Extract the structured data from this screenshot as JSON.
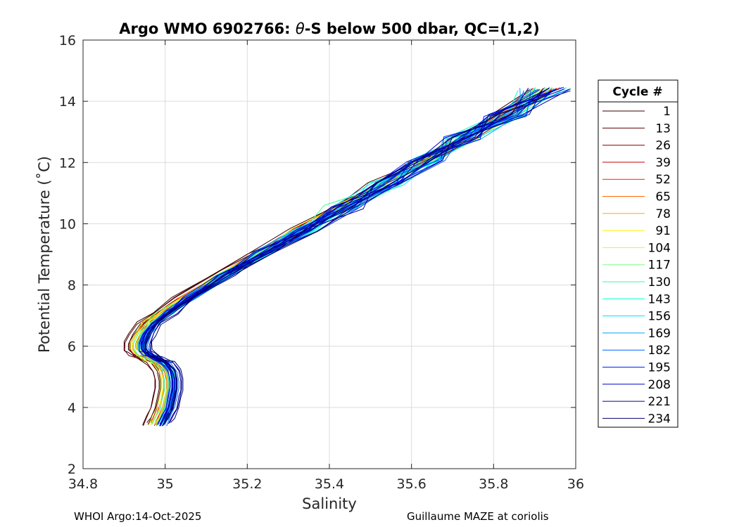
{
  "chart_data": {
    "type": "line",
    "title": "Argo WMO 6902766: θ-S below 500 dbar,  QC=(1,2)",
    "title_prefix": "Argo WMO 6902766: ",
    "title_theta": "θ",
    "title_suffix": "-S below 500 dbar,  QC=(1,2)",
    "xlabel": "Salinity",
    "ylabel": "Potential Temperature (˚C)",
    "xlim": [
      34.8,
      36
    ],
    "ylim": [
      2,
      16
    ],
    "xticks": [
      "34.8",
      "35",
      "35.2",
      "35.4",
      "35.6",
      "35.8",
      "36"
    ],
    "xtick_values": [
      34.8,
      35.0,
      35.2,
      35.4,
      35.6,
      35.8,
      36.0
    ],
    "yticks": [
      "2",
      "4",
      "6",
      "8",
      "10",
      "12",
      "14",
      "16"
    ],
    "ytick_values": [
      2,
      4,
      6,
      8,
      10,
      12,
      14,
      16
    ],
    "grid": true,
    "legend_title": "Cycle #",
    "legend_position": "outside-right",
    "legend": [
      {
        "label": "1",
        "color": "#3a0000"
      },
      {
        "label": "13",
        "color": "#5a0000"
      },
      {
        "label": "26",
        "color": "#8b0000"
      },
      {
        "label": "39",
        "color": "#c80000"
      },
      {
        "label": "52",
        "color": "#ff1e00"
      },
      {
        "label": "65",
        "color": "#ff6a00"
      },
      {
        "label": "78",
        "color": "#ffaa00"
      },
      {
        "label": "91",
        "color": "#ffee00"
      },
      {
        "label": "104",
        "color": "#ccff33"
      },
      {
        "label": "117",
        "color": "#7fff7f"
      },
      {
        "label": "130",
        "color": "#33ff99"
      },
      {
        "label": "143",
        "color": "#00ffcc"
      },
      {
        "label": "156",
        "color": "#00e0ff"
      },
      {
        "label": "169",
        "color": "#00a0ff"
      },
      {
        "label": "182",
        "color": "#0060ff"
      },
      {
        "label": "195",
        "color": "#0020ff"
      },
      {
        "label": "208",
        "color": "#0000cc"
      },
      {
        "label": "221",
        "color": "#000099"
      },
      {
        "label": "234",
        "color": "#00006b"
      }
    ],
    "mean_profile": {
      "salinity": [
        34.99,
        35.0,
        35.01,
        35.015,
        35.02,
        35.02,
        35.015,
        35.0,
        34.975,
        34.955,
        34.945,
        34.945,
        34.955,
        34.975,
        35.01,
        35.06,
        35.15,
        35.25,
        35.35,
        35.45,
        35.55,
        35.65,
        35.75,
        35.85,
        35.95
      ],
      "theta": [
        3.45,
        3.7,
        4.0,
        4.3,
        4.6,
        4.9,
        5.2,
        5.45,
        5.6,
        5.75,
        5.9,
        6.1,
        6.4,
        6.75,
        7.1,
        7.55,
        8.3,
        9.05,
        9.8,
        10.55,
        11.3,
        12.05,
        12.8,
        13.55,
        14.4
      ]
    }
  },
  "footer": {
    "left": "WHOI Argo:14-Oct-2025",
    "right": "Guillaume MAZE at coriolis"
  },
  "colors": {
    "axis": "#262626",
    "grid": "#dcdcdc"
  }
}
